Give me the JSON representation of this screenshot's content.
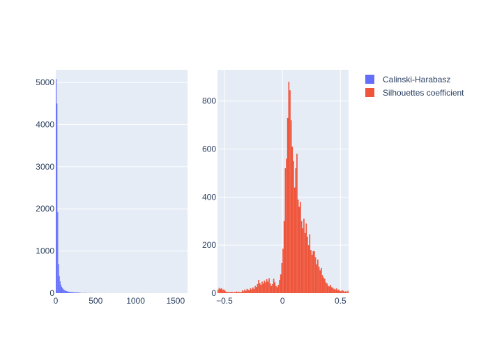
{
  "chart_data": [
    {
      "type": "bar",
      "subtype": "histogram",
      "series_name": "Calinski-Harabasz",
      "color": "#636efa",
      "xlim": [
        0,
        1650
      ],
      "ylim": [
        0,
        5300
      ],
      "xticks": [
        0,
        500,
        1000,
        1500
      ],
      "yticks": [
        0,
        1000,
        2000,
        3000,
        4000,
        5000
      ],
      "bin_width": 10,
      "bins": [
        {
          "x": 0,
          "y": 5080
        },
        {
          "x": 10,
          "y": 4500
        },
        {
          "x": 20,
          "y": 1920
        },
        {
          "x": 30,
          "y": 690
        },
        {
          "x": 40,
          "y": 410
        },
        {
          "x": 50,
          "y": 280
        },
        {
          "x": 60,
          "y": 200
        },
        {
          "x": 70,
          "y": 150
        },
        {
          "x": 80,
          "y": 120
        },
        {
          "x": 90,
          "y": 95
        },
        {
          "x": 100,
          "y": 80
        },
        {
          "x": 110,
          "y": 65
        },
        {
          "x": 120,
          "y": 55
        },
        {
          "x": 130,
          "y": 48
        },
        {
          "x": 140,
          "y": 42
        },
        {
          "x": 150,
          "y": 38
        },
        {
          "x": 160,
          "y": 34
        },
        {
          "x": 170,
          "y": 30
        },
        {
          "x": 180,
          "y": 28
        },
        {
          "x": 190,
          "y": 25
        },
        {
          "x": 200,
          "y": 24
        },
        {
          "x": 210,
          "y": 22
        },
        {
          "x": 220,
          "y": 20
        },
        {
          "x": 230,
          "y": 19
        },
        {
          "x": 240,
          "y": 18
        },
        {
          "x": 250,
          "y": 17
        },
        {
          "x": 260,
          "y": 16
        },
        {
          "x": 270,
          "y": 15
        },
        {
          "x": 280,
          "y": 14
        },
        {
          "x": 290,
          "y": 13
        },
        {
          "x": 300,
          "y": 12
        },
        {
          "x": 320,
          "y": 10
        },
        {
          "x": 340,
          "y": 9
        },
        {
          "x": 360,
          "y": 8
        },
        {
          "x": 380,
          "y": 7
        },
        {
          "x": 400,
          "y": 6
        },
        {
          "x": 430,
          "y": 5
        },
        {
          "x": 460,
          "y": 4
        },
        {
          "x": 500,
          "y": 4
        },
        {
          "x": 550,
          "y": 3
        },
        {
          "x": 600,
          "y": 3
        },
        {
          "x": 700,
          "y": 2
        },
        {
          "x": 800,
          "y": 2
        },
        {
          "x": 900,
          "y": 2
        },
        {
          "x": 1000,
          "y": 3
        },
        {
          "x": 1050,
          "y": 4
        },
        {
          "x": 1100,
          "y": 5
        },
        {
          "x": 1150,
          "y": 4
        },
        {
          "x": 1200,
          "y": 3
        },
        {
          "x": 1300,
          "y": 2
        },
        {
          "x": 1400,
          "y": 2
        },
        {
          "x": 1500,
          "y": 3
        },
        {
          "x": 1580,
          "y": 2
        }
      ]
    },
    {
      "type": "bar",
      "subtype": "histogram",
      "series_name": "Silhouettes coefficient",
      "color": "#ef553b",
      "xlim": [
        -0.56,
        0.57
      ],
      "ylim": [
        0,
        930
      ],
      "xticks": [
        -0.5,
        0,
        0.5
      ],
      "xtick_labels": [
        "−0.5",
        "0",
        "0.5"
      ],
      "yticks": [
        0,
        200,
        400,
        600,
        800
      ],
      "bin_width": 0.01,
      "bins": [
        {
          "x": -0.56,
          "y": 15
        },
        {
          "x": -0.55,
          "y": 22
        },
        {
          "x": -0.54,
          "y": 18
        },
        {
          "x": -0.53,
          "y": 20
        },
        {
          "x": -0.52,
          "y": 14
        },
        {
          "x": -0.51,
          "y": 16
        },
        {
          "x": -0.5,
          "y": 10
        },
        {
          "x": -0.49,
          "y": 6
        },
        {
          "x": -0.48,
          "y": 5
        },
        {
          "x": -0.47,
          "y": 4
        },
        {
          "x": -0.46,
          "y": 5
        },
        {
          "x": -0.45,
          "y": 4
        },
        {
          "x": -0.44,
          "y": 6
        },
        {
          "x": -0.43,
          "y": 3
        },
        {
          "x": -0.42,
          "y": 5
        },
        {
          "x": -0.41,
          "y": 4
        },
        {
          "x": -0.4,
          "y": 7
        },
        {
          "x": -0.39,
          "y": 5
        },
        {
          "x": -0.38,
          "y": 6
        },
        {
          "x": -0.37,
          "y": 4
        },
        {
          "x": -0.36,
          "y": 5
        },
        {
          "x": -0.35,
          "y": 12
        },
        {
          "x": -0.34,
          "y": 8
        },
        {
          "x": -0.33,
          "y": 15
        },
        {
          "x": -0.32,
          "y": 10
        },
        {
          "x": -0.31,
          "y": 18
        },
        {
          "x": -0.3,
          "y": 14
        },
        {
          "x": -0.29,
          "y": 12
        },
        {
          "x": -0.28,
          "y": 20
        },
        {
          "x": -0.27,
          "y": 16
        },
        {
          "x": -0.26,
          "y": 24
        },
        {
          "x": -0.25,
          "y": 18
        },
        {
          "x": -0.24,
          "y": 30
        },
        {
          "x": -0.23,
          "y": 26
        },
        {
          "x": -0.22,
          "y": 38
        },
        {
          "x": -0.21,
          "y": 55
        },
        {
          "x": -0.2,
          "y": 42
        },
        {
          "x": -0.19,
          "y": 35
        },
        {
          "x": -0.18,
          "y": 48
        },
        {
          "x": -0.17,
          "y": 40
        },
        {
          "x": -0.16,
          "y": 52
        },
        {
          "x": -0.15,
          "y": 45
        },
        {
          "x": -0.14,
          "y": 58
        },
        {
          "x": -0.13,
          "y": 48
        },
        {
          "x": -0.12,
          "y": 62
        },
        {
          "x": -0.11,
          "y": 40
        },
        {
          "x": -0.1,
          "y": 30
        },
        {
          "x": -0.09,
          "y": 38
        },
        {
          "x": -0.08,
          "y": 60
        },
        {
          "x": -0.07,
          "y": 45
        },
        {
          "x": -0.06,
          "y": 30
        },
        {
          "x": -0.05,
          "y": 25
        },
        {
          "x": -0.04,
          "y": 35
        },
        {
          "x": -0.03,
          "y": 55
        },
        {
          "x": -0.02,
          "y": 78
        },
        {
          "x": -0.01,
          "y": 125
        },
        {
          "x": 0.0,
          "y": 185
        },
        {
          "x": 0.01,
          "y": 300
        },
        {
          "x": 0.02,
          "y": 520
        },
        {
          "x": 0.03,
          "y": 560
        },
        {
          "x": 0.04,
          "y": 730
        },
        {
          "x": 0.05,
          "y": 880
        },
        {
          "x": 0.06,
          "y": 845
        },
        {
          "x": 0.07,
          "y": 720
        },
        {
          "x": 0.08,
          "y": 610
        },
        {
          "x": 0.09,
          "y": 550
        },
        {
          "x": 0.1,
          "y": 440
        },
        {
          "x": 0.11,
          "y": 520
        },
        {
          "x": 0.12,
          "y": 580
        },
        {
          "x": 0.13,
          "y": 390
        },
        {
          "x": 0.14,
          "y": 360
        },
        {
          "x": 0.15,
          "y": 380
        },
        {
          "x": 0.16,
          "y": 300
        },
        {
          "x": 0.17,
          "y": 270
        },
        {
          "x": 0.18,
          "y": 310
        },
        {
          "x": 0.19,
          "y": 250
        },
        {
          "x": 0.2,
          "y": 290
        },
        {
          "x": 0.21,
          "y": 235
        },
        {
          "x": 0.22,
          "y": 200
        },
        {
          "x": 0.23,
          "y": 245
        },
        {
          "x": 0.24,
          "y": 180
        },
        {
          "x": 0.25,
          "y": 160
        },
        {
          "x": 0.26,
          "y": 175
        },
        {
          "x": 0.27,
          "y": 175
        },
        {
          "x": 0.28,
          "y": 150
        },
        {
          "x": 0.29,
          "y": 120
        },
        {
          "x": 0.3,
          "y": 140
        },
        {
          "x": 0.31,
          "y": 110
        },
        {
          "x": 0.32,
          "y": 95
        },
        {
          "x": 0.33,
          "y": 105
        },
        {
          "x": 0.34,
          "y": 75
        },
        {
          "x": 0.35,
          "y": 65
        },
        {
          "x": 0.36,
          "y": 60
        },
        {
          "x": 0.37,
          "y": 45
        },
        {
          "x": 0.38,
          "y": 40
        },
        {
          "x": 0.39,
          "y": 30
        },
        {
          "x": 0.4,
          "y": 28
        },
        {
          "x": 0.41,
          "y": 35
        },
        {
          "x": 0.42,
          "y": 25
        },
        {
          "x": 0.43,
          "y": 22
        },
        {
          "x": 0.44,
          "y": 18
        },
        {
          "x": 0.45,
          "y": 15
        },
        {
          "x": 0.46,
          "y": 20
        },
        {
          "x": 0.47,
          "y": 12
        },
        {
          "x": 0.48,
          "y": 15
        },
        {
          "x": 0.49,
          "y": 10
        },
        {
          "x": 0.5,
          "y": 8
        },
        {
          "x": 0.51,
          "y": 12
        },
        {
          "x": 0.52,
          "y": 10
        },
        {
          "x": 0.53,
          "y": 6
        },
        {
          "x": 0.54,
          "y": 8
        },
        {
          "x": 0.55,
          "y": 5
        },
        {
          "x": 0.56,
          "y": 10
        }
      ]
    }
  ],
  "legend": {
    "placement": "top-right",
    "items": [
      {
        "label": "Calinski-Harabasz",
        "color": "#636efa"
      },
      {
        "label": "Silhouettes coefficient",
        "color": "#ef553b"
      }
    ]
  },
  "colors": {
    "plot_bg": "#e5ecf6",
    "grid": "#ffffff",
    "text": "#2a3f5f"
  }
}
